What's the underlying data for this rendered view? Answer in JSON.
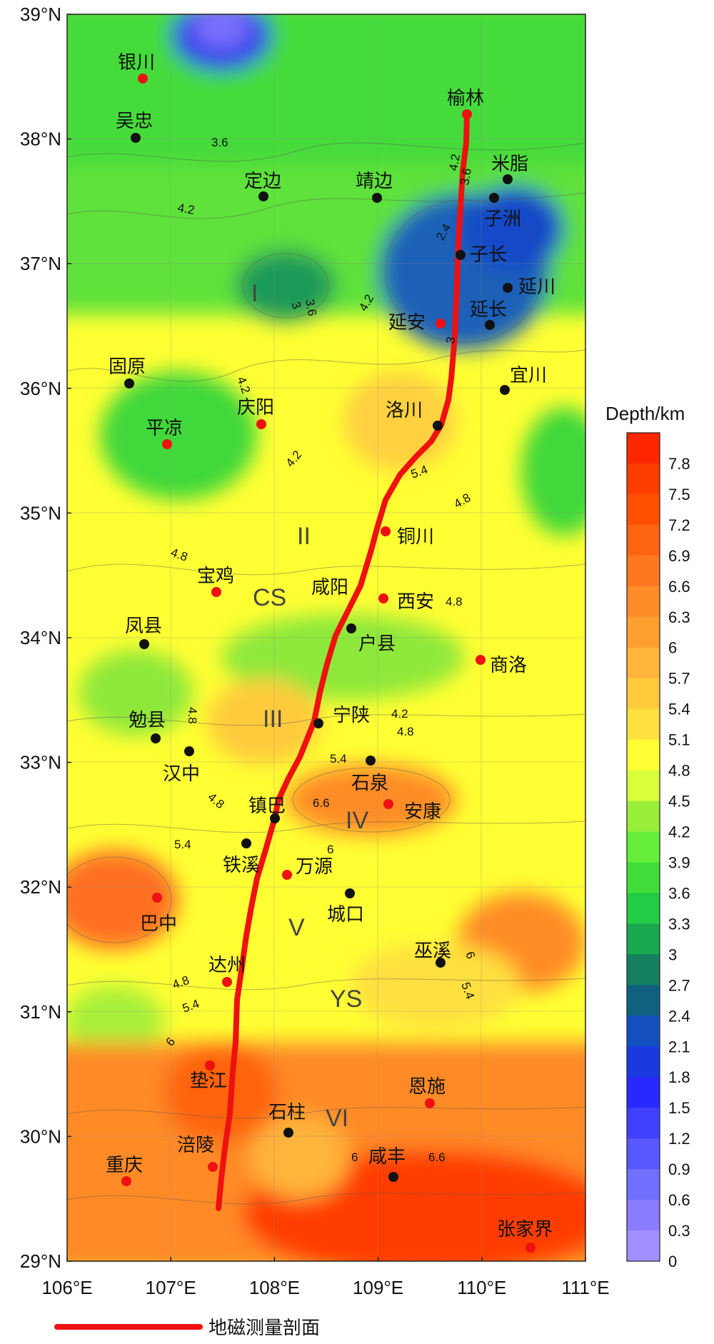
{
  "map": {
    "colorbar_title": "Depth/km",
    "lon_ticks": [
      "106°E",
      "107°E",
      "108°E",
      "109°E",
      "110°E",
      "111°E"
    ],
    "lat_ticks": [
      "39°N",
      "38°N",
      "37°N",
      "36°N",
      "35°N",
      "34°N",
      "33°N",
      "32°N",
      "31°N",
      "30°N",
      "29°N"
    ],
    "colorbar": {
      "labels": [
        "7.8",
        "7.5",
        "7.2",
        "6.9",
        "6.6",
        "6.3",
        "6",
        "5.7",
        "5.4",
        "5.1",
        "4.8",
        "4.5",
        "4.2",
        "3.9",
        "3.6",
        "3.3",
        "3",
        "2.7",
        "2.4",
        "2.1",
        "1.8",
        "1.5",
        "1.2",
        "0.9",
        "0.6",
        "0.3",
        "0"
      ],
      "colors": [
        "#ff2600",
        "#ff3d00",
        "#ff5000",
        "#ff6410",
        "#ff7820",
        "#ff8c28",
        "#ff9f30",
        "#ffb43a",
        "#ffcb3c",
        "#ffe040",
        "#ffff33",
        "#d9ff3a",
        "#99ee3a",
        "#66ee3a",
        "#40dd3a",
        "#22cc44",
        "#19a850",
        "#148060",
        "#106080",
        "#1450c0",
        "#1a3ae0",
        "#2828ff",
        "#4040ff",
        "#5858ff",
        "#7070ff",
        "#8a7cff",
        "#a090ff"
      ]
    },
    "legend_label": "地磁测量剖面",
    "profile_color": "#ee1111",
    "boundary_color": "#1ea0e6",
    "cities_black": [
      {
        "name": "吴忠"
      },
      {
        "name": "定边"
      },
      {
        "name": "靖边"
      },
      {
        "name": "米脂"
      },
      {
        "name": "子洲"
      },
      {
        "name": "子长"
      },
      {
        "name": "延川"
      },
      {
        "name": "延长"
      },
      {
        "name": "固原"
      },
      {
        "name": "宜川"
      },
      {
        "name": "洛川"
      },
      {
        "name": "凤县"
      },
      {
        "name": "户县"
      },
      {
        "name": "勉县"
      },
      {
        "name": "宁陕"
      },
      {
        "name": "汉中"
      },
      {
        "name": "石泉"
      },
      {
        "name": "镇巴"
      },
      {
        "name": "铁溪"
      },
      {
        "name": "城口"
      },
      {
        "name": "巫溪"
      },
      {
        "name": "石柱"
      },
      {
        "name": "咸丰"
      }
    ],
    "cities_red": [
      {
        "name": "银川"
      },
      {
        "name": "榆林"
      },
      {
        "name": "延安"
      },
      {
        "name": "庆阳"
      },
      {
        "name": "平凉"
      },
      {
        "name": "铜川"
      },
      {
        "name": "宝鸡"
      },
      {
        "name": "咸阳"
      },
      {
        "name": "西安"
      },
      {
        "name": "商洛"
      },
      {
        "name": "安康"
      },
      {
        "name": "万源"
      },
      {
        "name": "巴中"
      },
      {
        "name": "达州"
      },
      {
        "name": "恩施"
      },
      {
        "name": "垫江"
      },
      {
        "name": "涪陵"
      },
      {
        "name": "重庆"
      },
      {
        "name": "张家界"
      }
    ],
    "zones": [
      "I",
      "II",
      "CS",
      "III",
      "IV",
      "V",
      "YS",
      "VI"
    ],
    "contour_labels": [
      "3.6",
      "4.2",
      "3",
      "3.6",
      "4.2",
      "2.4",
      "4.2",
      "3.6",
      "3",
      "4.2",
      "4.2",
      "5.4",
      "4.8",
      "4.8",
      "4.8",
      "4.2",
      "4.8",
      "4.8",
      "5.4",
      "4.8",
      "6.6",
      "6",
      "5.4",
      "6",
      "5.4",
      "4.8",
      "5.4",
      "6",
      "6",
      "6.6"
    ]
  }
}
